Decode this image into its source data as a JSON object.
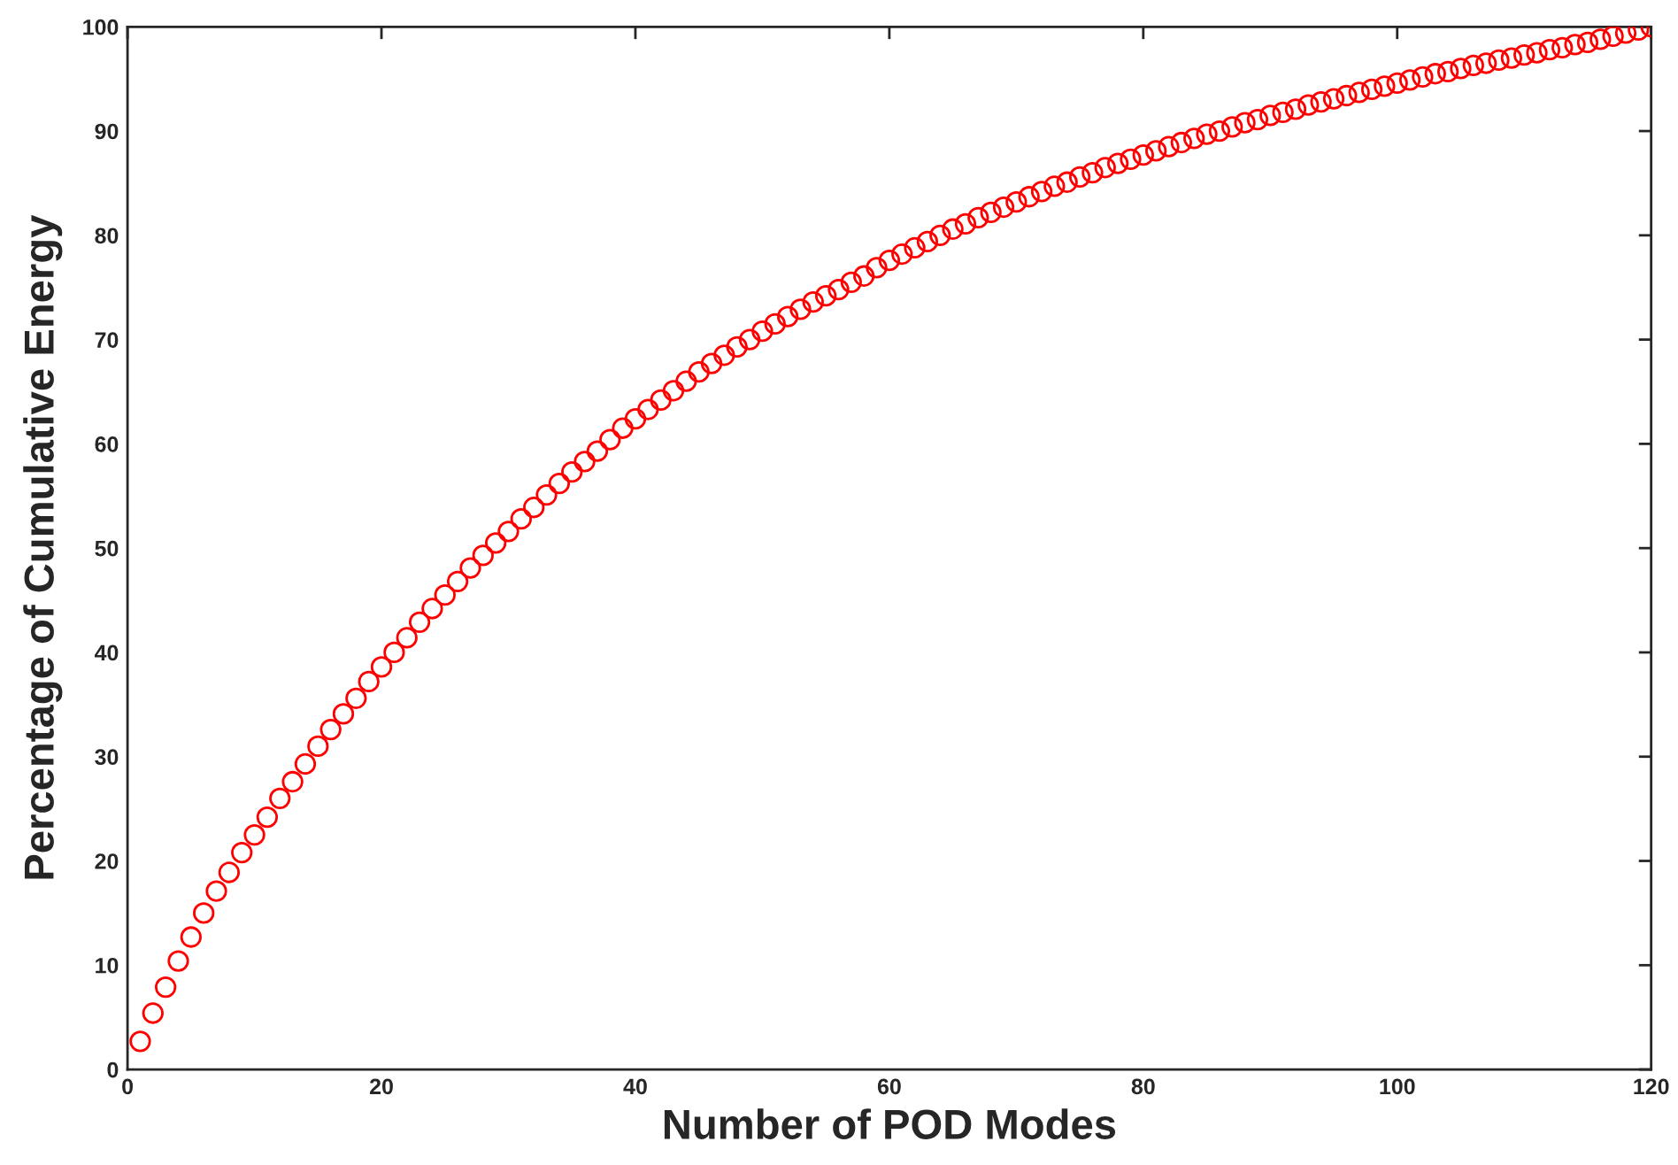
{
  "chart_data": {
    "type": "scatter",
    "xlabel": "Number of POD Modes",
    "ylabel": "Percentage of Cumulative Energy",
    "x": [
      1,
      2,
      3,
      4,
      5,
      6,
      7,
      8,
      9,
      10,
      11,
      12,
      13,
      14,
      15,
      16,
      17,
      18,
      19,
      20,
      21,
      22,
      23,
      24,
      25,
      26,
      27,
      28,
      29,
      30,
      31,
      32,
      33,
      34,
      35,
      36,
      37,
      38,
      39,
      40,
      41,
      42,
      43,
      44,
      45,
      46,
      47,
      48,
      49,
      50,
      51,
      52,
      53,
      54,
      55,
      56,
      57,
      58,
      59,
      60,
      61,
      62,
      63,
      64,
      65,
      66,
      67,
      68,
      69,
      70,
      71,
      72,
      73,
      74,
      75,
      76,
      77,
      78,
      79,
      80,
      81,
      82,
      83,
      84,
      85,
      86,
      87,
      88,
      89,
      90,
      91,
      92,
      93,
      94,
      95,
      96,
      97,
      98,
      99,
      100,
      101,
      102,
      103,
      104,
      105,
      106,
      107,
      108,
      109,
      110,
      111,
      112,
      113,
      114,
      115,
      116,
      117,
      118,
      119,
      120
    ],
    "values": [
      2.7,
      5.4,
      7.9,
      10.4,
      12.7,
      15.0,
      17.1,
      18.9,
      20.8,
      22.5,
      24.2,
      26.0,
      27.6,
      29.3,
      31.0,
      32.6,
      34.1,
      35.6,
      37.2,
      38.6,
      40.0,
      41.4,
      42.9,
      44.2,
      45.5,
      46.8,
      48.1,
      49.3,
      50.5,
      51.6,
      52.8,
      53.9,
      55.1,
      56.2,
      57.3,
      58.3,
      59.3,
      60.4,
      61.5,
      62.4,
      63.3,
      64.2,
      65.1,
      66.0,
      66.9,
      67.7,
      68.5,
      69.3,
      70.0,
      70.8,
      71.5,
      72.2,
      72.9,
      73.6,
      74.2,
      74.8,
      75.5,
      76.1,
      76.9,
      77.6,
      78.2,
      78.8,
      79.4,
      80.0,
      80.6,
      81.1,
      81.7,
      82.2,
      82.7,
      83.2,
      83.7,
      84.2,
      84.7,
      85.1,
      85.6,
      86.0,
      86.5,
      86.9,
      87.3,
      87.7,
      88.1,
      88.5,
      88.9,
      89.3,
      89.7,
      90.0,
      90.4,
      90.8,
      91.1,
      91.5,
      91.8,
      92.1,
      92.5,
      92.8,
      93.1,
      93.4,
      93.7,
      94.0,
      94.3,
      94.6,
      94.9,
      95.2,
      95.5,
      95.7,
      96.0,
      96.3,
      96.5,
      96.8,
      97.0,
      97.3,
      97.5,
      97.8,
      98.0,
      98.3,
      98.5,
      98.8,
      99.1,
      99.4,
      99.7,
      100
    ],
    "color": "#ff0000",
    "marker": "circle",
    "xlim": [
      0,
      120
    ],
    "xticks": [
      0,
      20,
      40,
      60,
      80,
      100,
      120
    ],
    "ylim": [
      0,
      100
    ],
    "yticks": [
      0,
      10,
      20,
      30,
      40,
      50,
      60,
      70,
      80,
      90,
      100
    ]
  }
}
